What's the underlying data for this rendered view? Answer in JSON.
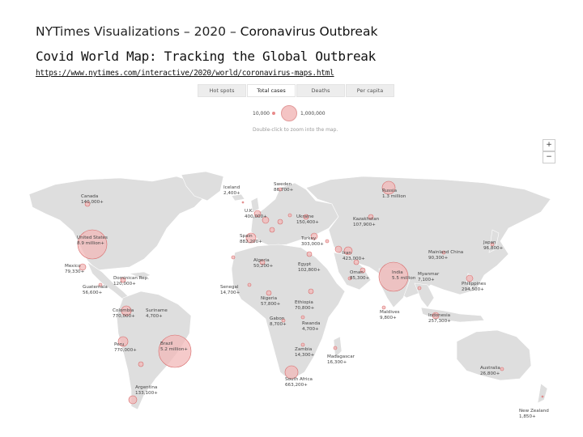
{
  "header": {
    "title_prefix": "NYTimes Visualizations – 2020 – ",
    "title_topic": "Coronavirus Outbreak",
    "subtitle": "Covid World Map: Tracking the Global Outbreak",
    "url": "https://www.nytimes.com/interactive/2020/world/coronavirus-maps.html"
  },
  "tabs": [
    {
      "label": "Hot spots"
    },
    {
      "label": "Total cases"
    },
    {
      "label": "Deaths"
    },
    {
      "label": "Per capita"
    }
  ],
  "legend": {
    "small_value": "10,000",
    "large_value": "1,000,000"
  },
  "hint": "Double-click to zoom into the map.",
  "zoom": {
    "in_label": "+",
    "out_label": "−"
  },
  "colors": {
    "bubble_fill": "#f2b8b8",
    "bubble_stroke": "#d86a6a",
    "land": "#dcdcdc"
  },
  "countries": [
    {
      "name": "Canada",
      "value": "140,000+"
    },
    {
      "name": "United States",
      "value": "8.9 million+"
    },
    {
      "name": "Mexico",
      "value": "79,330+"
    },
    {
      "name": "Guatemala",
      "value": "56,600+"
    },
    {
      "name": "Dominican Rep.",
      "value": "120,000+"
    },
    {
      "name": "Colombia",
      "value": "770,000+"
    },
    {
      "name": "Suriname",
      "value": "4,700+"
    },
    {
      "name": "Peru",
      "value": "770,000+"
    },
    {
      "name": "Brazil",
      "value": "5.2 million+"
    },
    {
      "name": "Argentina",
      "value": "133,100+"
    },
    {
      "name": "Iceland",
      "value": "2,400+"
    },
    {
      "name": "Sweden",
      "value": "86,700+"
    },
    {
      "name": "U.K.",
      "value": "400,000+"
    },
    {
      "name": "Spain",
      "value": "882,200+"
    },
    {
      "name": "Ukraine",
      "value": "150,400+"
    },
    {
      "name": "Turkey",
      "value": "303,000+"
    },
    {
      "name": "Russia",
      "value": "1.3 million"
    },
    {
      "name": "Kazakhstan",
      "value": "107,900+"
    },
    {
      "name": "Algeria",
      "value": "50,200+"
    },
    {
      "name": "Egypt",
      "value": "102,800+"
    },
    {
      "name": "Iran",
      "value": "423,000+"
    },
    {
      "name": "Oman",
      "value": "85,300+"
    },
    {
      "name": "India",
      "value": "5.5 million"
    },
    {
      "name": "Myanmar",
      "value": "7,100+"
    },
    {
      "name": "Mainland China",
      "value": "90,300+"
    },
    {
      "name": "Japan",
      "value": "96,800+"
    },
    {
      "name": "Philippines",
      "value": "294,500+"
    },
    {
      "name": "Senegal",
      "value": "14,700+"
    },
    {
      "name": "Nigeria",
      "value": "57,800+"
    },
    {
      "name": "Ethiopia",
      "value": "70,800+"
    },
    {
      "name": "Gabon",
      "value": "8,700+"
    },
    {
      "name": "Rwanda",
      "value": "4,700+"
    },
    {
      "name": "Maldives",
      "value": "9,800+"
    },
    {
      "name": "Indonesia",
      "value": "257,300+"
    },
    {
      "name": "Zambia",
      "value": "14,300+"
    },
    {
      "name": "Madagascar",
      "value": "16,300+"
    },
    {
      "name": "South Africa",
      "value": "663,200+"
    },
    {
      "name": "Australia",
      "value": "26,800+"
    },
    {
      "name": "New Zealand",
      "value": "1,850+"
    }
  ]
}
